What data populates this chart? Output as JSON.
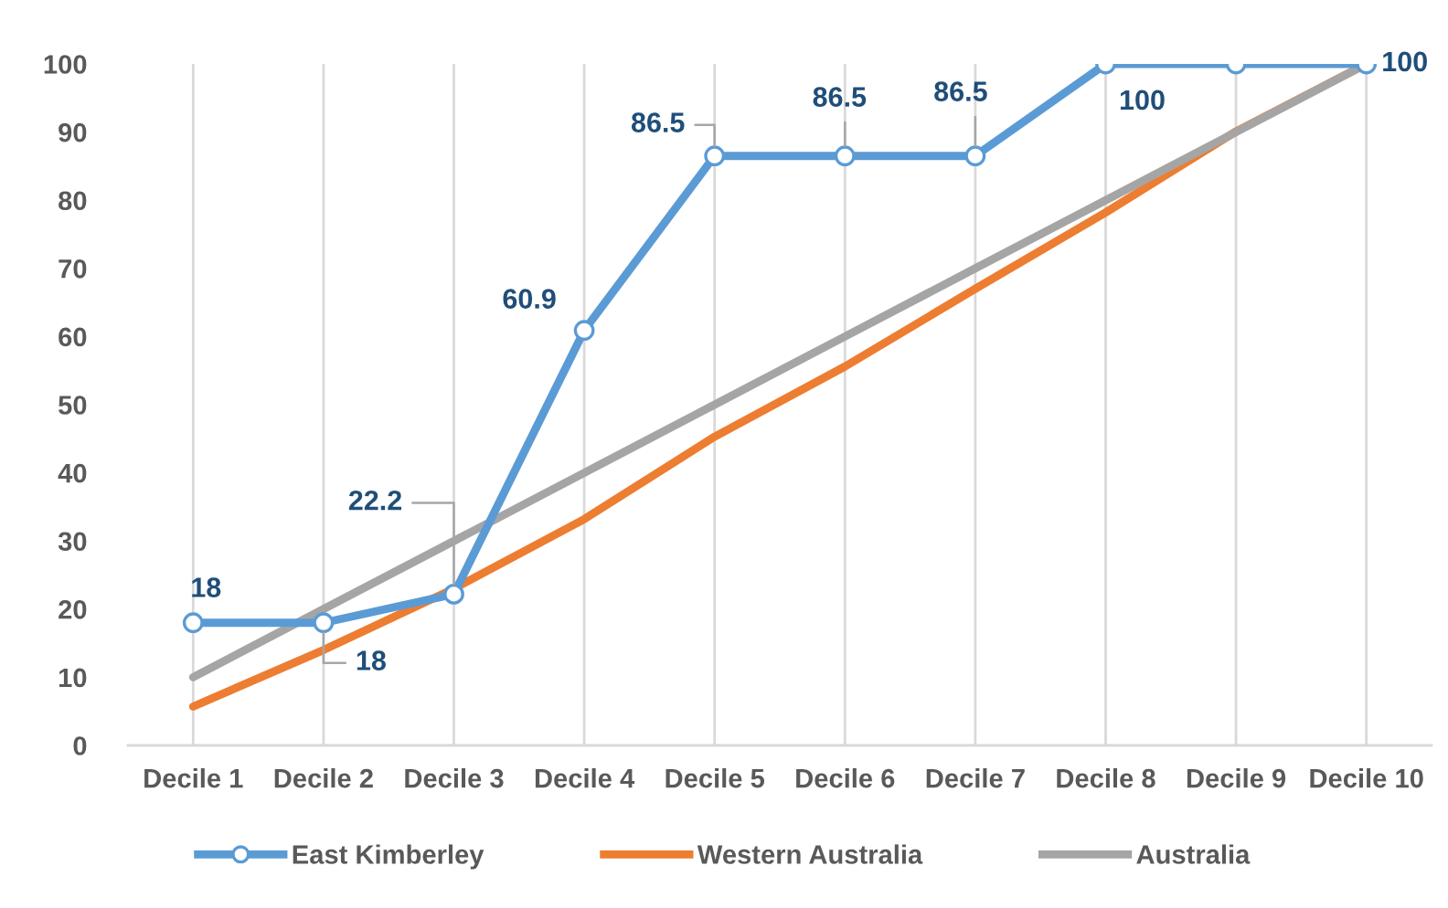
{
  "chart_data": {
    "type": "line",
    "categories": [
      "Decile 1",
      "Decile 2",
      "Decile 3",
      "Decile 4",
      "Decile 5",
      "Decile 6",
      "Decile 7",
      "Decile 8",
      "Decile 9",
      "Decile 10"
    ],
    "series": [
      {
        "name": "East Kimberley",
        "color": "#5b9bd5",
        "marker": "circle",
        "values": [
          18,
          18,
          22.2,
          60.9,
          86.5,
          86.5,
          86.5,
          100,
          100,
          100
        ],
        "value_labels": [
          "18",
          "18",
          "22.2",
          "60.9",
          "86.5",
          "86.5",
          "86.5",
          "100",
          null,
          "100"
        ]
      },
      {
        "name": "Western Australia",
        "color": "#ed7d31",
        "marker": "none",
        "values": [
          5.7,
          14,
          23,
          33.2,
          45.3,
          55.6,
          67,
          78.2,
          90.1,
          100
        ]
      },
      {
        "name": "Australia",
        "color": "#a5a5a5",
        "marker": "none",
        "values": [
          10,
          20,
          30,
          40,
          50,
          60,
          70,
          80,
          90,
          100
        ]
      }
    ],
    "ylim": [
      0,
      100
    ],
    "yticks": [
      0,
      10,
      20,
      30,
      40,
      50,
      60,
      70,
      80,
      90,
      100
    ],
    "grid": "x",
    "legend": "bottom"
  }
}
